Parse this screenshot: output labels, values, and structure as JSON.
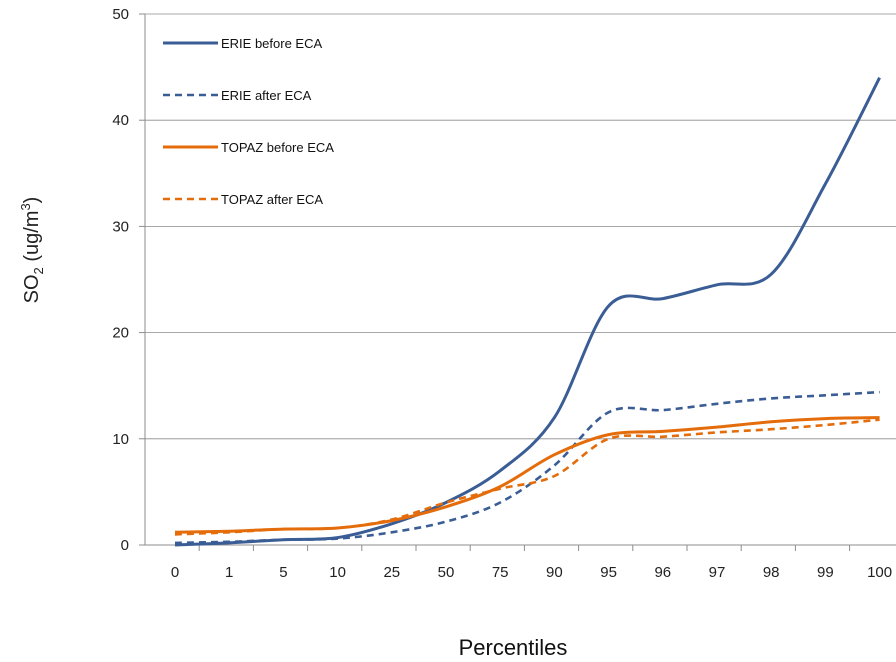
{
  "chart_data": {
    "type": "line",
    "title": "",
    "xlabel": "Percentiles",
    "ylabel": {
      "main": "SO",
      "sub": "2",
      "unit_pre": " (ug/m",
      "unit_sup": "3",
      "unit_post": ")"
    },
    "ylim": [
      0,
      50
    ],
    "yticks": [
      "0",
      "10",
      "20",
      "30",
      "40",
      "50"
    ],
    "yticks_values": [
      0,
      10,
      20,
      30,
      40,
      50
    ],
    "grid": true,
    "legend_position": "top-left",
    "categories": [
      "0",
      "1",
      "5",
      "10",
      "25",
      "50",
      "75",
      "90",
      "95",
      "96",
      "97",
      "98",
      "99",
      "100"
    ],
    "series": [
      {
        "name": "ERIE before ECA",
        "color": "#3A5D95",
        "style": "solid",
        "values": [
          0.0,
          0.2,
          0.5,
          0.7,
          2.0,
          4.0,
          7.0,
          12.0,
          22.5,
          23.2,
          24.5,
          25.5,
          34.0,
          44.0
        ]
      },
      {
        "name": "ERIE after ECA",
        "color": "#3A5D95",
        "style": "dashed",
        "values": [
          0.2,
          0.3,
          0.5,
          0.6,
          1.2,
          2.2,
          4.0,
          7.5,
          12.5,
          12.7,
          13.3,
          13.8,
          14.1,
          14.4
        ]
      },
      {
        "name": "TOPAZ before ECA",
        "color": "#E46C0A",
        "style": "solid",
        "values": [
          1.2,
          1.3,
          1.5,
          1.6,
          2.3,
          3.6,
          5.5,
          8.5,
          10.4,
          10.7,
          11.1,
          11.6,
          11.9,
          12.0
        ]
      },
      {
        "name": "TOPAZ after ECA",
        "color": "#E46C0A",
        "style": "dashed",
        "values": [
          1.0,
          1.2,
          1.5,
          1.6,
          2.4,
          4.0,
          5.3,
          6.5,
          10.0,
          10.2,
          10.6,
          10.9,
          11.3,
          11.8
        ]
      }
    ]
  }
}
